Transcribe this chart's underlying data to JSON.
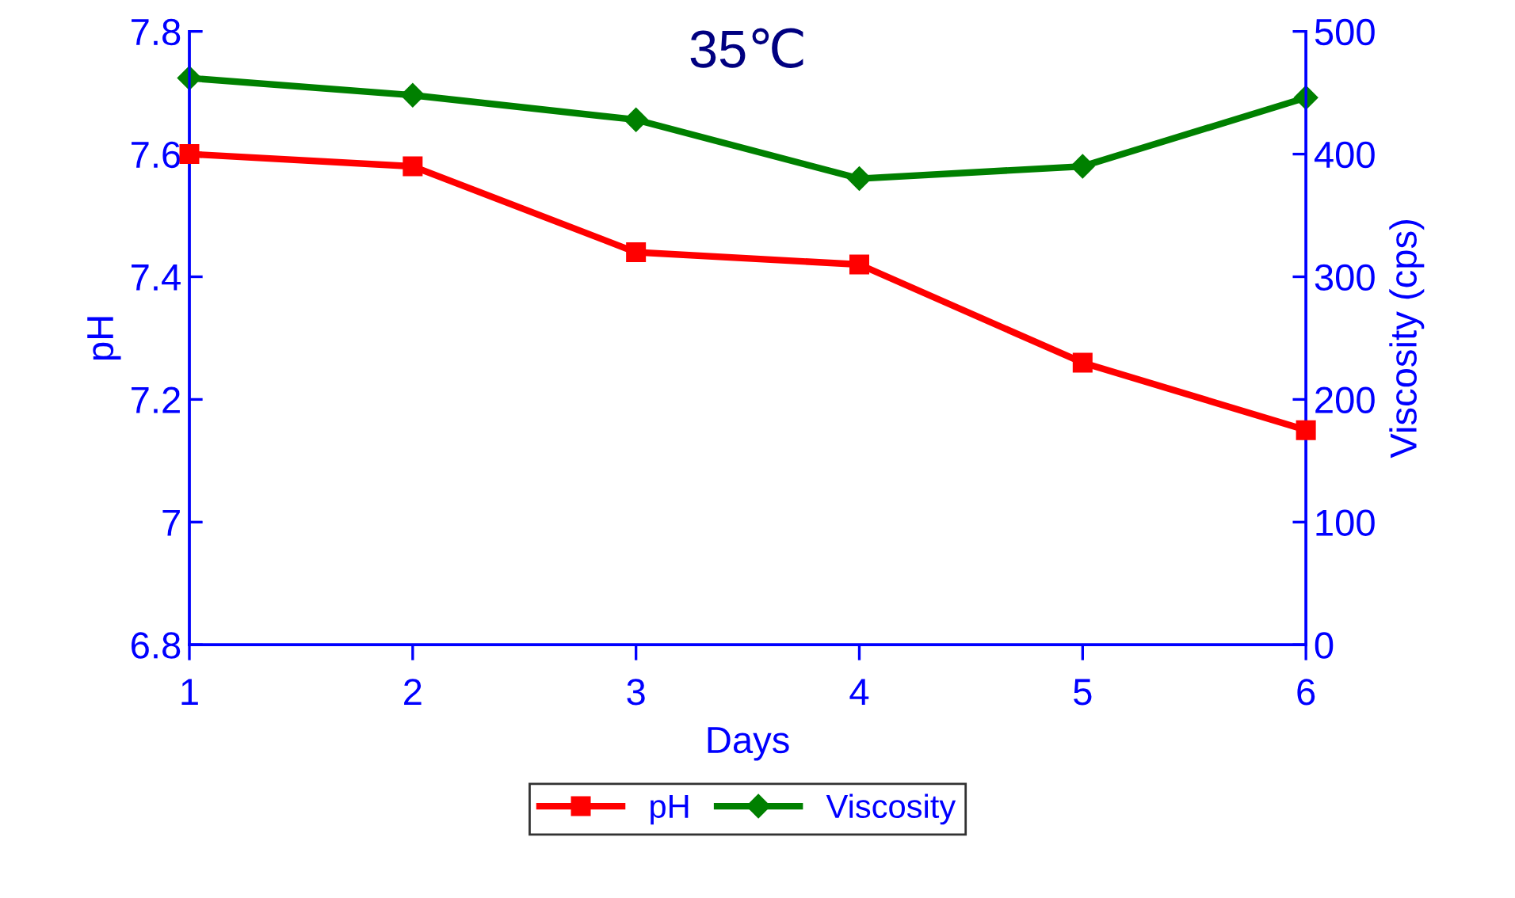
{
  "chart_data": {
    "type": "line",
    "title": "35℃",
    "xlabel": "Days",
    "ylabel": "pH",
    "y2label": "Viscosity (cps)",
    "x": [
      1,
      2,
      3,
      4,
      5,
      6
    ],
    "series": [
      {
        "name": "pH",
        "color": "#ff0000",
        "marker": "square",
        "values": [
          7.6,
          7.58,
          7.44,
          7.42,
          7.26,
          7.15
        ]
      },
      {
        "name": "Viscosity",
        "color": "#008000",
        "marker": "diamond",
        "axis": "y2",
        "values": [
          462,
          448,
          428,
          380,
          390,
          446
        ]
      }
    ],
    "xlim": [
      1,
      6
    ],
    "xticks": [
      1,
      2,
      3,
      4,
      5,
      6
    ],
    "ylim": [
      6.8,
      7.8
    ],
    "yticks": [
      {
        "value": 6.8,
        "label": "6.8"
      },
      {
        "value": 7.0,
        "label": "7"
      },
      {
        "value": 7.2,
        "label": "7.2"
      },
      {
        "value": 7.4,
        "label": "7.4"
      },
      {
        "value": 7.6,
        "label": "7.6"
      },
      {
        "value": 7.8,
        "label": "7.8"
      }
    ],
    "y2lim": [
      0,
      500
    ],
    "y2ticks": [
      0,
      100,
      200,
      300,
      400,
      500
    ],
    "grid": false,
    "legend": "bottom",
    "line_style": "solid"
  }
}
